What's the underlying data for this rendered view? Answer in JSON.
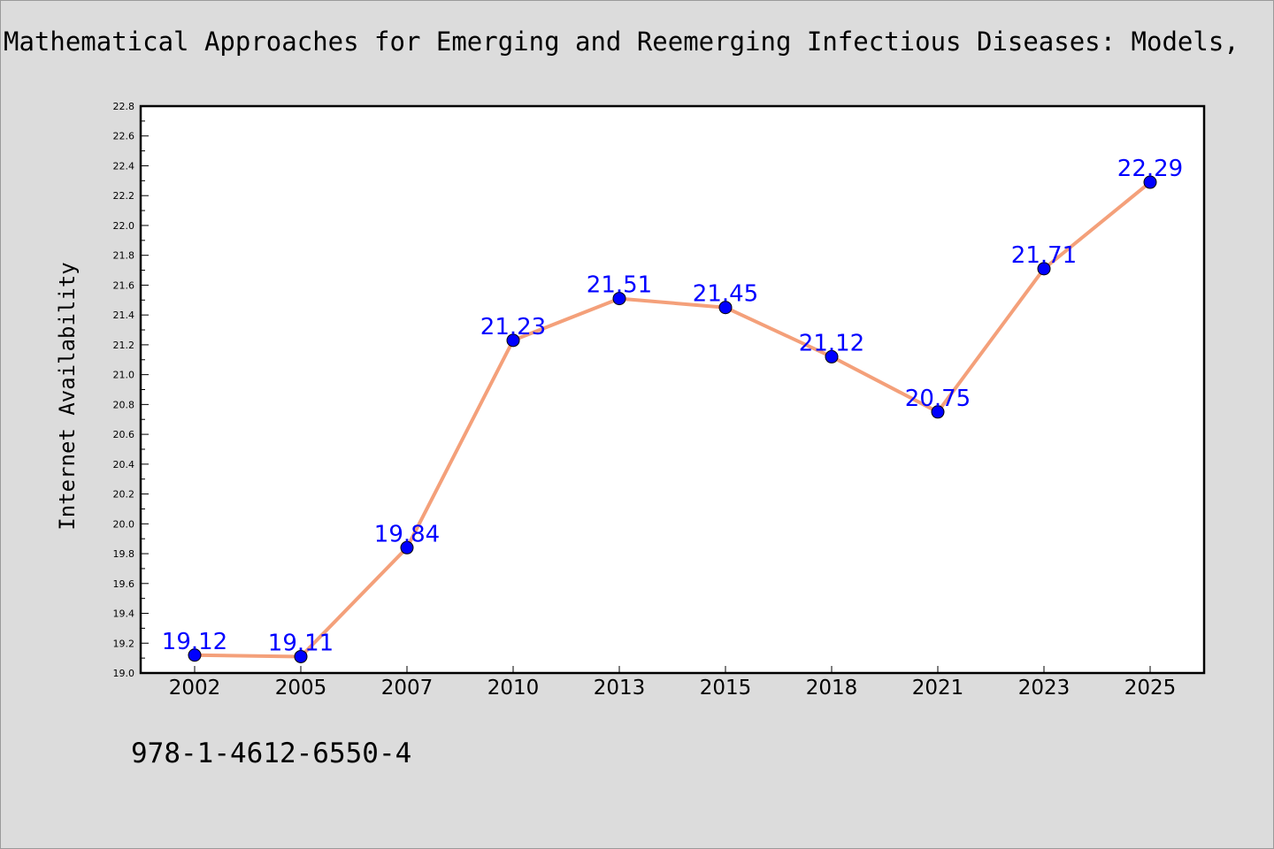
{
  "chart_data": {
    "type": "line",
    "title": "Mathematical Approaches for Emerging and Reemerging Infectious Diseases: Models,",
    "xlabel": "",
    "ylabel": "Internet Availability",
    "categories": [
      "2002",
      "2005",
      "2007",
      "2010",
      "2013",
      "2015",
      "2018",
      "2021",
      "2023",
      "2025"
    ],
    "series": [
      {
        "values": [
          19.12,
          19.11,
          19.84,
          21.23,
          21.51,
          21.45,
          21.12,
          20.75,
          21.71,
          22.29
        ],
        "line_color": "#f4a07a",
        "marker_color": "#0000ff"
      }
    ],
    "data_labels": [
      "19.12",
      "19.11",
      "19.84",
      "21.23",
      "21.51",
      "21.45",
      "21.12",
      "20.75",
      "21.71",
      "22.29"
    ],
    "ylim": [
      19.0,
      22.8
    ],
    "yticks": [
      19.0,
      19.2,
      19.4,
      19.6,
      19.8,
      20.0,
      20.2,
      20.4,
      20.6,
      20.8,
      21.0,
      21.2,
      21.4,
      21.6,
      21.8,
      22.0,
      22.2,
      22.4,
      22.6,
      22.8
    ],
    "ytick_labels": [
      "19.0",
      "19.2",
      "19.4",
      "19.6",
      "19.8",
      "20.0",
      "20.2",
      "20.4",
      "20.6",
      "20.8",
      "21.0",
      "21.2",
      "21.4",
      "21.6",
      "21.8",
      "22.0",
      "22.2",
      "22.4",
      "22.6",
      "22.8"
    ],
    "grid": false,
    "legend": "none"
  },
  "footer": {
    "isbn": "978-1-4612-6550-4"
  }
}
